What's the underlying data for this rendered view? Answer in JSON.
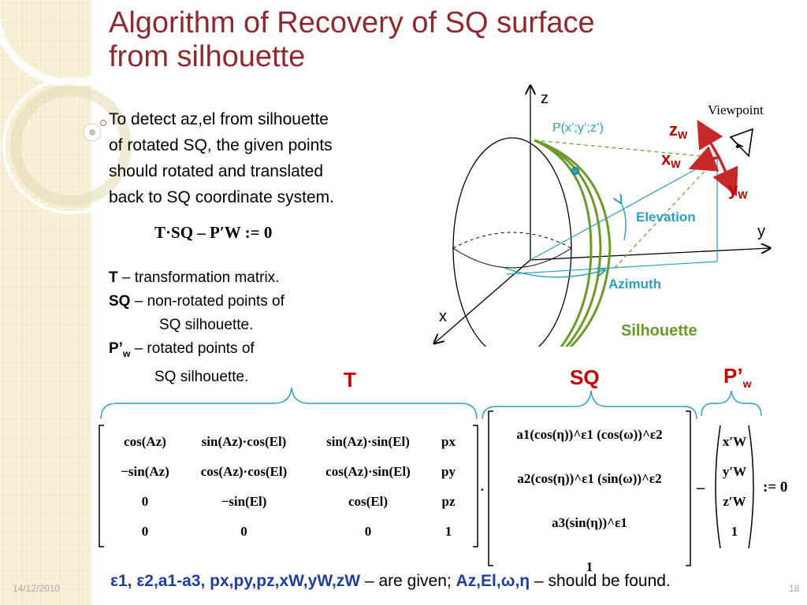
{
  "slide": {
    "title_line1": "Algorithm of Recovery of SQ surface",
    "title_line2": "from silhouette",
    "body_lines": [
      "To detect az,el from silhouette",
      "of rotated SQ, the given points",
      "should rotated and translated",
      "back to SQ coordinate system."
    ],
    "formula_top": "T·SQ – P′W := 0",
    "defs": {
      "T_term": "T",
      "T_desc": " – transformation matrix.",
      "SQ_term": "SQ",
      "SQ_desc": " – non-rotated points of",
      "SQ_desc2": "SQ silhouette.",
      "P_term": "P’",
      "P_sub": "w",
      "P_desc": " – rotated points of",
      "P_desc2": "SQ silhouette."
    },
    "brace_labels": {
      "T": "T",
      "SQ": "SQ",
      "P": "P’",
      "P_sub": "w"
    },
    "bottom_line": {
      "given_vars": "ε1, ε2,a1-a3, px,py,pz,xW,yW,zW",
      "given_text": " – are given; ",
      "found_vars": "Az,El,ω,η",
      "found_text": " – should be found."
    },
    "footer_date": "14/12/2010",
    "page_number": "18"
  },
  "diagram": {
    "axis_z": "z",
    "axis_y": "y",
    "axis_x": "x",
    "point_label": "P(x’;y’;z’)",
    "zw": "z",
    "xw": "x",
    "yw": "y",
    "w_sub": "W",
    "viewpoint": "Viewpoint",
    "elevation": "Elevation",
    "azimuth": "Azimuth",
    "silhouette": "Silhouette"
  },
  "matrices": {
    "T": [
      [
        "cos(Az)",
        "sin(Az)·cos(El)",
        "sin(Az)·sin(El)",
        "px"
      ],
      [
        "−sin(Az)",
        "cos(Az)·cos(El)",
        "cos(Az)·sin(El)",
        "py"
      ],
      [
        "0",
        "−sin(El)",
        "cos(El)",
        "pz"
      ],
      [
        "0",
        "0",
        "0",
        "1"
      ]
    ],
    "SQ": [
      "a1(cos(η))^ε1 (cos(ω))^ε2",
      "a2(cos(η))^ε1 (sin(ω))^ε2",
      "a3(sin(η))^ε1",
      "1"
    ],
    "P": [
      "x′W",
      "y′W",
      "z′W",
      "1"
    ],
    "minus": "–",
    "dot": "·",
    "assign": ":= 0"
  },
  "colors": {
    "title": "#8e2a2f",
    "accent_red": "#c00000",
    "teal_label": "#2a9fbf",
    "silhouette_green": "#6a9a2a",
    "bottom_blue": "#1f3f99",
    "sidebar": "#f6ecca"
  }
}
